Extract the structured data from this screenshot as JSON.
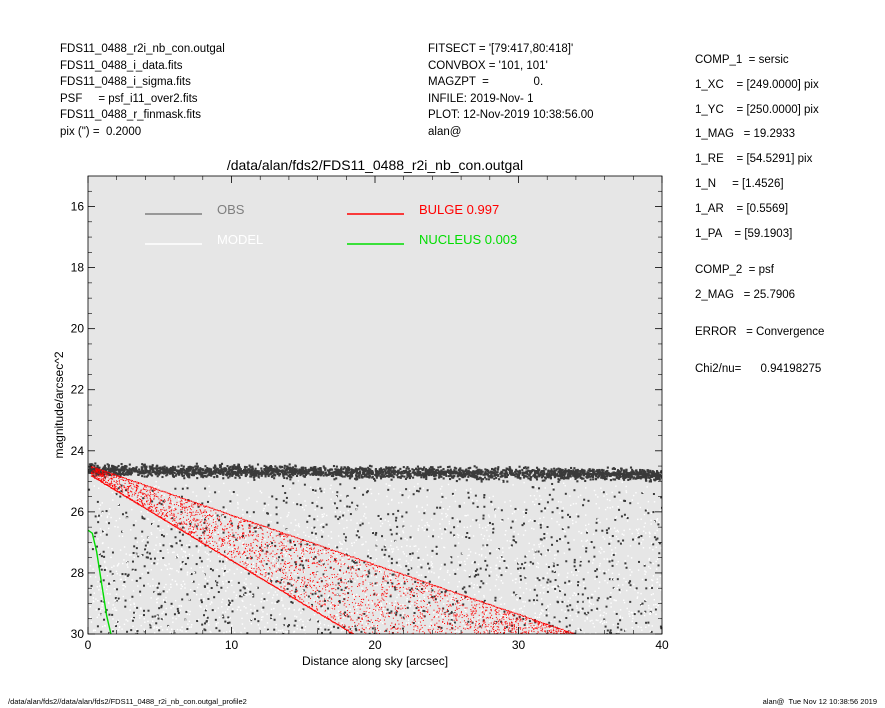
{
  "header_left": [
    "FDS11_0488_r2i_nb_con.outgal",
    "FDS11_0488_i_data.fits",
    "FDS11_0488_i_sigma.fits",
    "PSF     = psf_i11_over2.fits",
    "FDS11_0488_r_finmask.fits",
    "pix (\") =  0.2000"
  ],
  "header_mid": [
    "FITSECT = '[79:417,80:418]'",
    "CONVBOX = '101, 101'",
    "MAGZPT  =              0.",
    "INFILE: 2019-Nov- 1",
    "PLOT: 12-Nov-2019 10:38:56.00",
    "alan@"
  ],
  "params_group1": [
    "COMP_1  = sersic",
    "1_XC    = [249.0000] pix",
    "1_YC    = [250.0000] pix",
    "1_MAG   = 19.2933",
    "1_RE    = [54.5291] pix",
    "1_N     = [1.4526]",
    "1_AR    = [0.5569]",
    "1_PA    = [59.1903]"
  ],
  "params_group2": [
    "COMP_2  = psf",
    "2_MAG   = 25.7906"
  ],
  "params_error": "ERROR   = Convergence",
  "params_chi2": "Chi2/nu=      0.94198275",
  "footer_left": "/data/alan/fds2//data/alan/fds2/FDS11_0488_r2i_nb_con.outgal_profile2",
  "footer_right": "alan@  Tue Nov 12 10:38:56 2019",
  "chart_data": {
    "type": "scatter",
    "title": "/data/alan/fds2/FDS11_0488_r2i_nb_con.outgal",
    "xlabel": "Distance along sky [arcsec]",
    "ylabel": "magnitude/arcsec^2",
    "xlim": [
      0,
      40
    ],
    "ylim": [
      30,
      15
    ],
    "y_inverted": true,
    "x_ticks": [
      0,
      10,
      20,
      30,
      40
    ],
    "y_ticks": [
      16,
      18,
      20,
      22,
      24,
      26,
      28,
      30
    ],
    "grid": false,
    "background": "#e6e6e6",
    "legend": [
      {
        "label": "OBS",
        "color": "#7f7f7f"
      },
      {
        "label": "MODEL",
        "color": "#ffffff"
      },
      {
        "label": "BULGE  0.997",
        "color": "#ff0000"
      },
      {
        "label": "NUCLEUS  0.003",
        "color": "#00dd00"
      }
    ],
    "series": [
      {
        "name": "OBS",
        "color": "#3a3a3a",
        "band_upper": 24.1,
        "band_lower": 25.1,
        "scatter_to": 30
      },
      {
        "name": "MODEL",
        "color": "#ffffff",
        "x_from": 0,
        "x_to": 40,
        "mag_range": [
          25,
          30
        ]
      },
      {
        "name": "BULGE",
        "color": "#ff0000",
        "upper_edge": [
          [
            0.2,
            24.5
          ],
          [
            34,
            30
          ]
        ],
        "lower_edge": [
          [
            0.2,
            24.8
          ],
          [
            18.5,
            30
          ]
        ]
      },
      {
        "name": "NUCLEUS",
        "color": "#00dd00",
        "points": [
          [
            0,
            26.6
          ],
          [
            0.3,
            26.7
          ],
          [
            0.6,
            27.3
          ],
          [
            1.0,
            28.5
          ],
          [
            1.3,
            29.4
          ],
          [
            1.6,
            30
          ]
        ]
      }
    ]
  }
}
